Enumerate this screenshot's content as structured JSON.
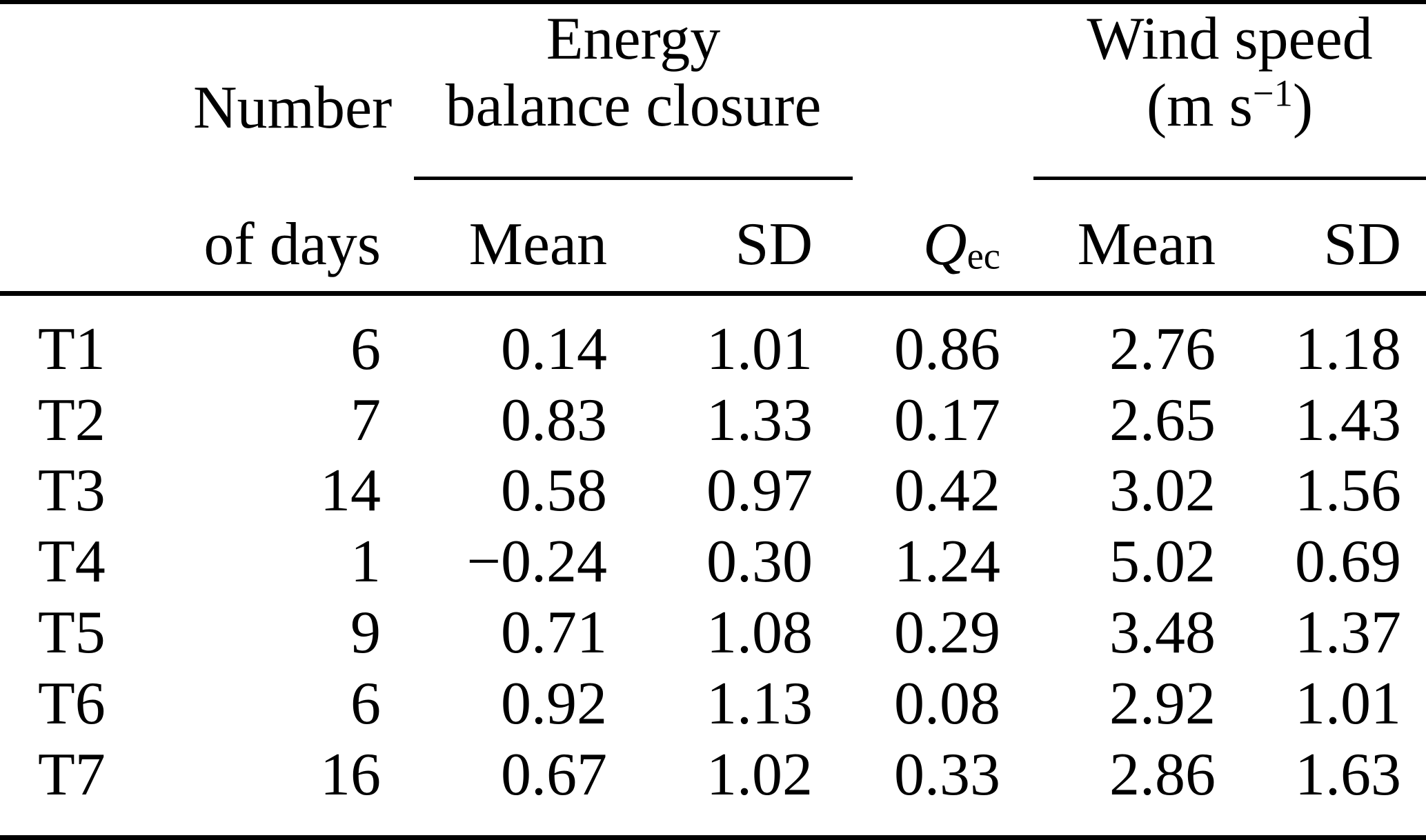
{
  "colors": {
    "text": "#000000",
    "background": "#ffffff",
    "rules": "#000000"
  },
  "table": {
    "header": {
      "number_line1": "Number",
      "number_line2": "of days",
      "energy_group_line1": "Energy",
      "energy_group_line2": "balance closure",
      "wind_group_line1": "Wind speed",
      "wind_unit_open": "(m s",
      "wind_unit_exponent": "−1",
      "wind_unit_close": ")",
      "ebc_mean": "Mean",
      "ebc_sd": "SD",
      "qec_symbol": "Q",
      "qec_subscript": "ec",
      "ws_mean": "Mean",
      "ws_sd": "SD"
    },
    "rows": [
      {
        "site": "T1",
        "days": "6",
        "ebc_mean": "0.14",
        "ebc_sd": "1.01",
        "qec": "0.86",
        "ws_mean": "2.76",
        "ws_sd": "1.18"
      },
      {
        "site": "T2",
        "days": "7",
        "ebc_mean": "0.83",
        "ebc_sd": "1.33",
        "qec": "0.17",
        "ws_mean": "2.65",
        "ws_sd": "1.43"
      },
      {
        "site": "T3",
        "days": "14",
        "ebc_mean": "0.58",
        "ebc_sd": "0.97",
        "qec": "0.42",
        "ws_mean": "3.02",
        "ws_sd": "1.56"
      },
      {
        "site": "T4",
        "days": "1",
        "ebc_mean": "−0.24",
        "ebc_sd": "0.30",
        "qec": "1.24",
        "ws_mean": "5.02",
        "ws_sd": "0.69"
      },
      {
        "site": "T5",
        "days": "9",
        "ebc_mean": "0.71",
        "ebc_sd": "1.08",
        "qec": "0.29",
        "ws_mean": "3.48",
        "ws_sd": "1.37"
      },
      {
        "site": "T6",
        "days": "6",
        "ebc_mean": "0.92",
        "ebc_sd": "1.13",
        "qec": "0.08",
        "ws_mean": "2.92",
        "ws_sd": "1.01"
      },
      {
        "site": "T7",
        "days": "16",
        "ebc_mean": "0.67",
        "ebc_sd": "1.02",
        "qec": "0.33",
        "ws_mean": "2.86",
        "ws_sd": "1.63"
      }
    ]
  }
}
